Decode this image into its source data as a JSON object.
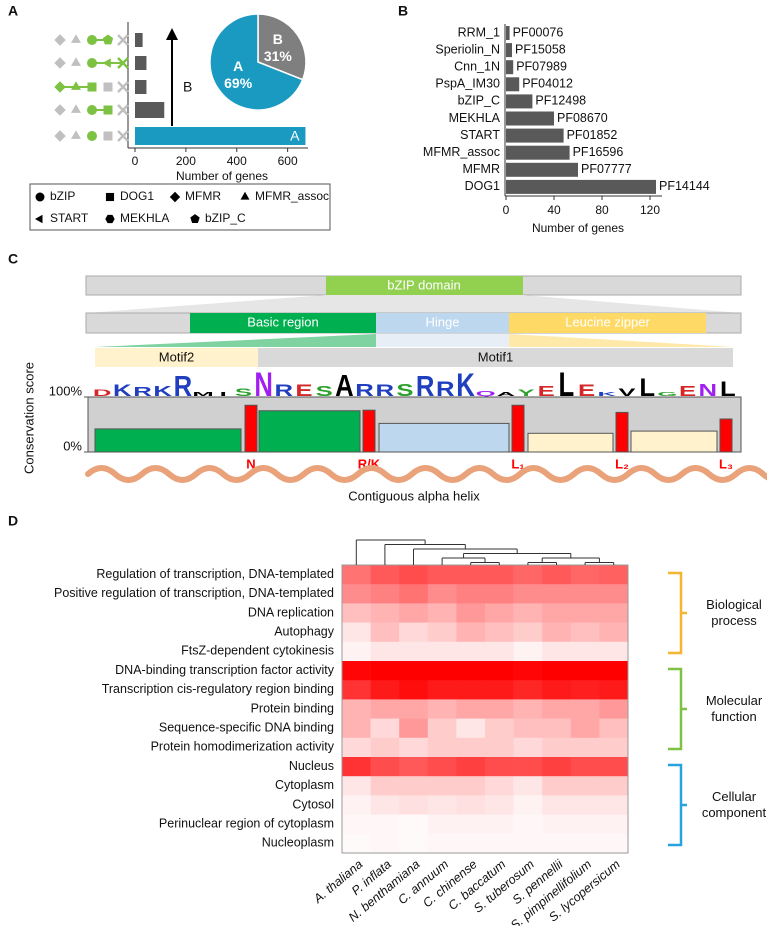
{
  "panel_labels": [
    "A",
    "B",
    "C",
    "D"
  ],
  "chart_data": [
    {
      "type": "bar",
      "orientation": "horizontal",
      "categories": [
        null,
        null,
        null,
        null,
        null
      ],
      "values": [
        30,
        45,
        45,
        115,
        670
      ],
      "colors": [
        "#595959",
        "#595959",
        "#595959",
        "#595959",
        "#1a9ac0"
      ],
      "xlim": [
        0,
        680
      ],
      "xticks": [
        0,
        200,
        400,
        600
      ],
      "xlabel": "Number of genes",
      "bar_annotation": "A",
      "arrow_annotation": "B",
      "legend": [
        {
          "name": "bZIP",
          "marker": "circle"
        },
        {
          "name": "DOG1",
          "marker": "square"
        },
        {
          "name": "MFMR",
          "marker": "diamond"
        },
        {
          "name": "MFMR_assoc",
          "marker": "triangle"
        },
        {
          "name": "START",
          "marker": "triangle-left"
        },
        {
          "name": "MEKHLA",
          "marker": "hexagon"
        },
        {
          "name": "bZIP_C",
          "marker": "pentagon"
        }
      ]
    },
    {
      "type": "pie",
      "categories": [
        "B",
        "A"
      ],
      "values": [
        31,
        69
      ],
      "value_labels": [
        "31%",
        "69%"
      ],
      "colors": [
        "#7f7f7f",
        "#1a9ac0"
      ]
    },
    {
      "type": "bar",
      "orientation": "horizontal",
      "categories": [
        "RRM_1",
        "Speriolin_N",
        "Cnn_1N",
        "PspA_IM30",
        "bZIP_C",
        "MEKHLA",
        "START",
        "MFMR_assoc",
        "MFMR",
        "DOG1"
      ],
      "values": [
        3,
        5,
        6,
        11,
        22,
        40,
        48,
        53,
        60,
        125
      ],
      "annotations": [
        "PF00076",
        "PF15058",
        "PF07989",
        "PF04012",
        "PF12498",
        "PF08670",
        "PF01852",
        "PF16596",
        "PF07777",
        "PF14144"
      ],
      "color": "#595959",
      "xlim": [
        0,
        130
      ],
      "xticks": [
        0,
        40,
        80,
        120
      ],
      "xlabel": "Number of genes"
    },
    {
      "type": "conservation",
      "domain": "bZIP domain",
      "regions": [
        "Basic region",
        "Hinge",
        "Leucine zipper"
      ],
      "region_colors": [
        "#00b050",
        "#bdd7ee",
        "#ffd966"
      ],
      "motifs": [
        "Motif2",
        "Motif1"
      ],
      "logo": {
        "letters": [
          "D",
          "K",
          "R",
          "K",
          "R",
          "M",
          "I",
          "S",
          "N",
          "R",
          "E",
          "S",
          "A",
          "R",
          "R",
          "S",
          "R",
          "R",
          "K",
          "Q",
          "A",
          "Y",
          "E",
          "L",
          "E",
          "K",
          "V",
          "L",
          "G",
          "E",
          "N",
          "L"
        ],
        "heights": [
          25,
          45,
          35,
          40,
          80,
          15,
          15,
          30,
          95,
          45,
          45,
          40,
          85,
          50,
          45,
          50,
          80,
          60,
          90,
          20,
          15,
          25,
          40,
          95,
          45,
          15,
          30,
          70,
          15,
          40,
          50,
          60
        ],
        "colors": [
          "#d62728",
          "#1f3fbf",
          "#1f3fbf",
          "#1f3fbf",
          "#1f3fbf",
          "#000000",
          "#000000",
          "#2ca02c",
          "#a020f0",
          "#1f3fbf",
          "#d62728",
          "#2ca02c",
          "#000000",
          "#1f3fbf",
          "#1f3fbf",
          "#2ca02c",
          "#1f3fbf",
          "#1f3fbf",
          "#1f3fbf",
          "#a020f0",
          "#000000",
          "#2ca02c",
          "#d62728",
          "#000000",
          "#d62728",
          "#1f3fbf",
          "#000000",
          "#000000",
          "#2ca02c",
          "#d62728",
          "#a020f0",
          "#000000"
        ]
      },
      "segments": {
        "values": [
          42,
          75,
          52,
          34,
          38
        ],
        "colors": [
          "#00b050",
          "#00b050",
          "#bdd7ee",
          "#fff2cc",
          "#fff2cc"
        ]
      },
      "residues": {
        "labels": [
          "N",
          "R/K",
          "L₁",
          "L₂",
          "L₃"
        ],
        "values": [
          85,
          76,
          85,
          72,
          60
        ],
        "color": "#ff0000"
      },
      "ylim": [
        0,
        100
      ],
      "yticks": [
        {
          "value": 100,
          "label": "100%"
        },
        {
          "value": 0,
          "label": "0%"
        }
      ],
      "ylabel": "Conservation score",
      "helix_label": "Contiguous alpha helix"
    },
    {
      "type": "heatmap",
      "columns": [
        "A. thaliana",
        "P. inflata",
        "N. benthamiana",
        "C. annuum",
        "C. chinense",
        "C. baccatum",
        "S. tuberosum",
        "S. pennellii",
        "S. pimpinellifolium",
        "S. lycopersicum"
      ],
      "clim": [
        0,
        100
      ],
      "color": "#ff0000",
      "groups": [
        {
          "name": "Biological process",
          "color": "#f5b52e",
          "rows": [
            "Regulation of transcription, DNA-templated",
            "Positive regulation of transcription, DNA-templated",
            "DNA replication",
            "Autophagy",
            "FtsZ-dependent cytokinesis"
          ],
          "values": [
            [
              55,
              65,
              70,
              65,
              65,
              65,
              60,
              65,
              60,
              62
            ],
            [
              45,
              50,
              55,
              45,
              50,
              50,
              45,
              45,
              45,
              45
            ],
            [
              25,
              30,
              35,
              30,
              40,
              35,
              30,
              35,
              35,
              35
            ],
            [
              10,
              25,
              15,
              20,
              30,
              25,
              20,
              30,
              25,
              30
            ],
            [
              5,
              10,
              10,
              10,
              10,
              10,
              5,
              10,
              10,
              10
            ]
          ]
        },
        {
          "name": "Molecular function",
          "color": "#7dc242",
          "rows": [
            "DNA-binding transcription factor activity",
            "Transcription cis-regulatory region binding",
            "Protein binding",
            "Sequence-specific DNA binding",
            "Protein homodimerization activity"
          ],
          "values": [
            [
              98,
              100,
              100,
              100,
              100,
              100,
              98,
              100,
              100,
              100
            ],
            [
              80,
              90,
              95,
              90,
              90,
              90,
              85,
              90,
              88,
              90
            ],
            [
              30,
              35,
              35,
              30,
              35,
              35,
              30,
              35,
              35,
              40
            ],
            [
              30,
              15,
              40,
              20,
              10,
              20,
              25,
              25,
              35,
              25
            ],
            [
              15,
              20,
              15,
              20,
              20,
              20,
              15,
              20,
              20,
              20
            ]
          ]
        },
        {
          "name": "Cellular component",
          "color": "#29a3e0",
          "rows": [
            "Nucleus",
            "Cytoplasm",
            "Cytosol",
            "Perinuclear region of cytoplasm",
            "Nucleoplasm"
          ],
          "values": [
            [
              80,
              70,
              65,
              70,
              75,
              70,
              70,
              75,
              70,
              70
            ],
            [
              10,
              20,
              20,
              20,
              20,
              15,
              10,
              20,
              20,
              20
            ],
            [
              5,
              10,
              12,
              10,
              12,
              10,
              5,
              10,
              10,
              10
            ],
            [
              3,
              3,
              2,
              5,
              5,
              5,
              3,
              5,
              5,
              5
            ],
            [
              2,
              3,
              2,
              3,
              3,
              3,
              3,
              3,
              3,
              3
            ]
          ]
        }
      ]
    }
  ]
}
